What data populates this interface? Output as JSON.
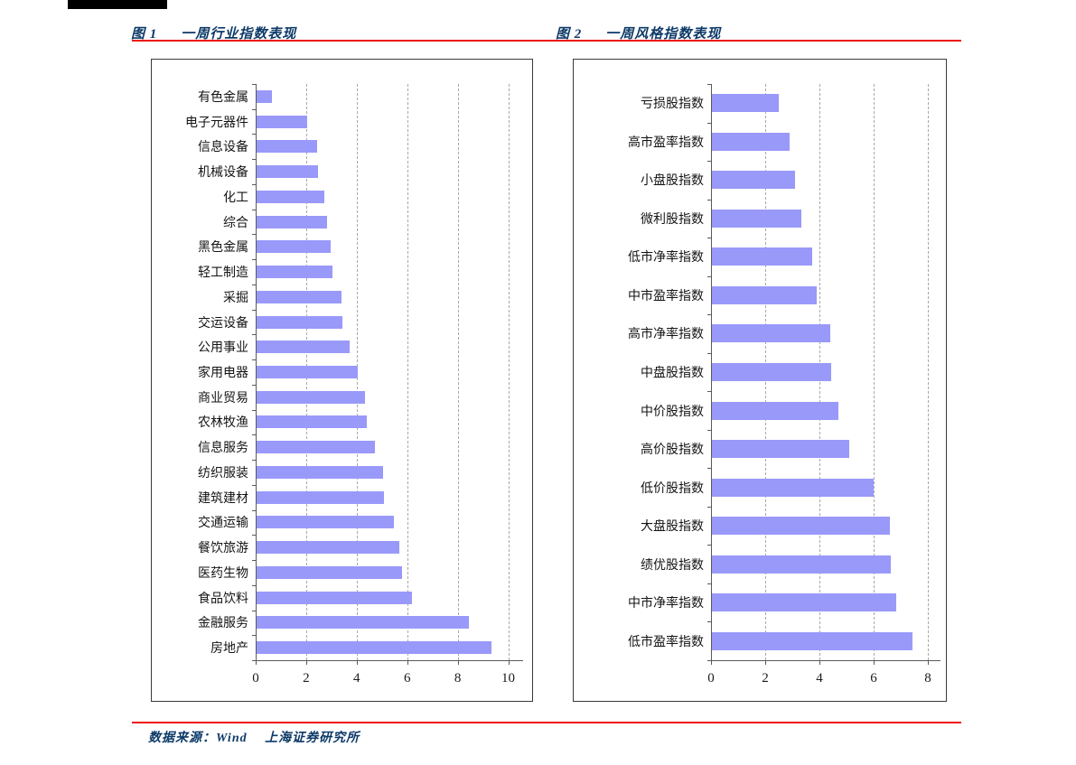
{
  "page": {
    "background": "#ffffff",
    "accent_red": "#ee1111",
    "title_color": "#0d3a68",
    "bar_color": "#9999fa",
    "top_bar_color": "#000000"
  },
  "figures": [
    {
      "fig_label": "图 1",
      "title": "一周行业指数表现"
    },
    {
      "fig_label": "图 2",
      "title": "一周风格指数表现"
    }
  ],
  "footer": {
    "text": "数据来源：Wind　 上海证券研究所"
  },
  "chart_data": [
    {
      "type": "bar",
      "orientation": "horizontal",
      "title": "一周行业指数表现",
      "categories": [
        "有色金属",
        "电子元器件",
        "信息设备",
        "机械设备",
        "化工",
        "综合",
        "黑色金属",
        "轻工制造",
        "采掘",
        "交运设备",
        "公用事业",
        "家用电器",
        "商业贸易",
        "农林牧渔",
        "信息服务",
        "纺织服装",
        "建筑建材",
        "交通运输",
        "餐饮旅游",
        "医药生物",
        "食品饮料",
        "金融服务",
        "房地产"
      ],
      "values": [
        0.6,
        2.0,
        2.4,
        2.45,
        2.7,
        2.8,
        2.95,
        3.0,
        3.35,
        3.4,
        3.7,
        4.0,
        4.3,
        4.35,
        4.7,
        5.0,
        5.05,
        5.45,
        5.65,
        5.75,
        6.15,
        8.4,
        9.3
      ],
      "xlabel": "",
      "ylabel": "",
      "xlim": [
        0,
        10
      ],
      "xticks": [
        0,
        2,
        4,
        6,
        8,
        10
      ],
      "grid": "dashed-vertical",
      "legend": "none"
    },
    {
      "type": "bar",
      "orientation": "horizontal",
      "title": "一周风格指数表现",
      "categories": [
        "亏损股指数",
        "高市盈率指数",
        "小盘股指数",
        "微利股指数",
        "低市净率指数",
        "中市盈率指数",
        "高市净率指数",
        "中盘股指数",
        "中价股指数",
        "高价股指数",
        "低价股指数",
        "大盘股指数",
        "绩优股指数",
        "中市净率指数",
        "低市盈率指数"
      ],
      "values": [
        2.45,
        2.85,
        3.05,
        3.3,
        3.7,
        3.85,
        4.35,
        4.4,
        4.65,
        5.05,
        5.95,
        6.55,
        6.6,
        6.8,
        7.4
      ],
      "xlabel": "",
      "ylabel": "",
      "xlim": [
        0,
        8
      ],
      "xticks": [
        0,
        2,
        4,
        6,
        8
      ],
      "grid": "dashed-vertical",
      "legend": "none"
    }
  ]
}
